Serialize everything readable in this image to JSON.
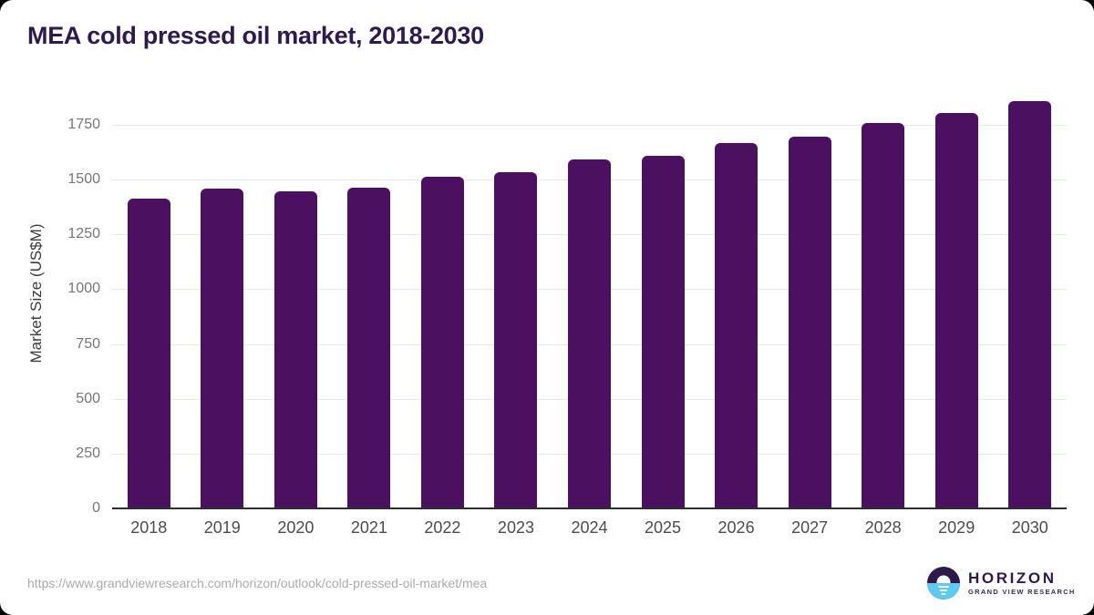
{
  "header": {
    "title": "MEA cold pressed oil market, 2018-2030"
  },
  "chart_data": {
    "type": "bar",
    "title": "MEA cold pressed oil market, 2018-2030",
    "categories": [
      "2018",
      "2019",
      "2020",
      "2021",
      "2022",
      "2023",
      "2024",
      "2025",
      "2026",
      "2027",
      "2028",
      "2029",
      "2030"
    ],
    "values": [
      1415,
      1460,
      1445,
      1465,
      1515,
      1535,
      1590,
      1610,
      1665,
      1695,
      1760,
      1805,
      1860
    ],
    "xlabel": "",
    "ylabel": "Market Size (US$M)",
    "ylim": [
      0,
      1900
    ],
    "yticks": [
      0,
      250,
      500,
      750,
      1000,
      1250,
      1500,
      1750
    ],
    "grid": "horizontal",
    "legend": "none",
    "bar_color": "#4b1160"
  },
  "footer": {
    "source_url": "https://www.grandviewresearch.com/horizon/outlook/cold-pressed-oil-market/mea",
    "logo": {
      "brand": "HORIZON",
      "sub_brand": "GRAND VIEW RESEARCH",
      "icon": "horizon-sun-icon",
      "purple": "#2e1a4a",
      "blue": "#5ec9f1"
    }
  },
  "colors": {
    "title_text": "#2f1a4c",
    "bar": "#4b1160",
    "gridline": "#e8e8e8",
    "axis_line": "#2e2e2e",
    "y_tick_text": "#767676",
    "x_tick_text": "#4c4c4c",
    "url_text": "#ababab",
    "card_background": "#ffffff"
  }
}
